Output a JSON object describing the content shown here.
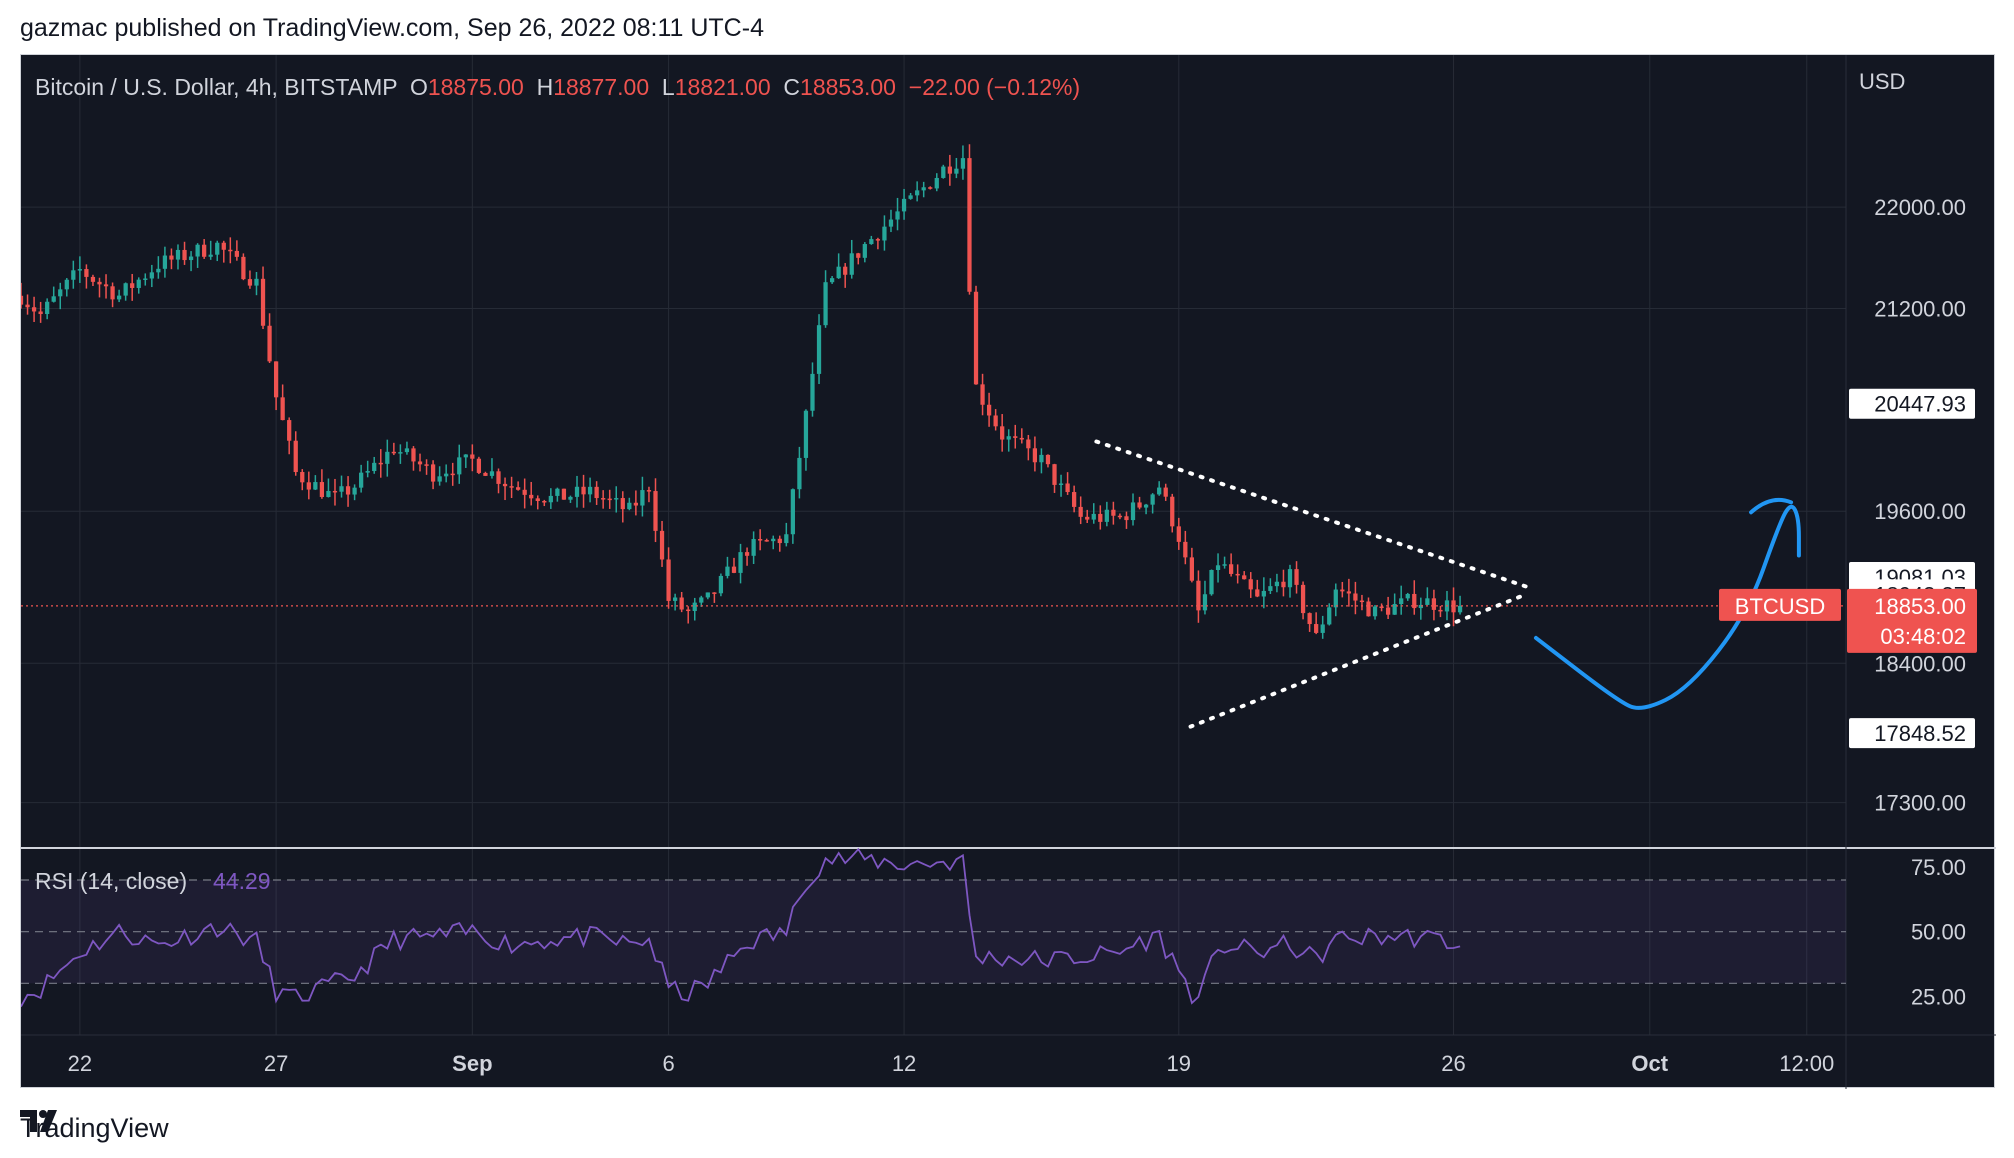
{
  "header": {
    "publisher": "gazmac published on TradingView.com, Sep 26, 2022 08:11 UTC-4"
  },
  "footer": {
    "brand": "TradingView"
  },
  "colors": {
    "bg": "#131722",
    "up": "#26a69a",
    "down": "#ef5350",
    "rsi": "#7e57c2",
    "drawing": "#2196f3",
    "grid": "#262b36",
    "axis_text": "#d1d4dc"
  },
  "chart_data": [
    {
      "type": "candlestick",
      "symbol_label": "Bitcoin / U.S. Dollar, 4h, BITSTAMP",
      "ohlc_labels": {
        "open": "O18875.00",
        "high": "H18877.00",
        "low": "L18821.00",
        "close": "C18853.00",
        "change": "−22.00 (−0.12%)"
      },
      "currency": "USD",
      "y_ticks": [
        "22000.00",
        "21200.00",
        "19600.00",
        "18400.00",
        "17300.00"
      ],
      "y_tick_values": [
        22000,
        21200,
        19600,
        18400,
        17300
      ],
      "price_labels": [
        {
          "text": "20447.93",
          "value": 20447.93
        },
        {
          "text": "19081.03",
          "value": 19081.03
        },
        {
          "text": "18943.37",
          "value": 18943.37
        },
        {
          "text": "17848.52",
          "value": 17848.52
        }
      ],
      "last_price": {
        "symbol": "BTCUSD",
        "value_text": "18853.00",
        "value": 18853,
        "countdown": "03:48:02"
      },
      "ylim": [
        16950,
        23200
      ],
      "x_ticks": [
        "22",
        "27",
        "Sep",
        "6",
        "12",
        "19",
        "26",
        "Oct",
        "12:00"
      ],
      "x_tick_days": [
        22,
        27,
        32,
        37,
        43,
        50,
        57,
        62,
        66
      ],
      "x_range_days": [
        20.5,
        67
      ],
      "anchors": [
        [
          20.5,
          21300
        ],
        [
          21,
          21150
        ],
        [
          22,
          21500
        ],
        [
          23,
          21300
        ],
        [
          24,
          21550
        ],
        [
          25.5,
          21700
        ],
        [
          26.5,
          21400
        ],
        [
          27,
          20500
        ],
        [
          27.5,
          19900
        ],
        [
          28.5,
          19700
        ],
        [
          29,
          19800
        ],
        [
          30,
          20100
        ],
        [
          31,
          19900
        ],
        [
          32,
          20000
        ],
        [
          33,
          19800
        ],
        [
          34,
          19700
        ],
        [
          35,
          19750
        ],
        [
          36,
          19600
        ],
        [
          36.5,
          19800
        ],
        [
          37,
          18900
        ],
        [
          37.5,
          18800
        ],
        [
          38,
          18900
        ],
        [
          39,
          19300
        ],
        [
          40,
          19400
        ],
        [
          40.5,
          20350
        ],
        [
          41,
          21350
        ],
        [
          42,
          21700
        ],
        [
          43,
          22000
        ],
        [
          44,
          22300
        ],
        [
          44.5,
          22400
        ],
        [
          44.8,
          20600
        ],
        [
          45.5,
          20200
        ],
        [
          46.5,
          20000
        ],
        [
          47.5,
          19550
        ],
        [
          48.5,
          19550
        ],
        [
          49,
          19650
        ],
        [
          49.5,
          19800
        ],
        [
          50,
          19400
        ],
        [
          50.5,
          18800
        ],
        [
          51,
          19200
        ],
        [
          52,
          18900
        ],
        [
          52.8,
          19100
        ],
        [
          53.5,
          18600
        ],
        [
          54,
          19000
        ],
        [
          55,
          18800
        ],
        [
          56,
          18900
        ],
        [
          57,
          18850
        ],
        [
          57.3,
          18853
        ]
      ],
      "triangle_upper": [
        [
          47.9,
          20150
        ],
        [
          58.9,
          19000
        ]
      ],
      "triangle_lower": [
        [
          50.3,
          17900
        ],
        [
          58.9,
          18950
        ]
      ],
      "drawing_path_points": [
        [
          59.1,
          18600
        ],
        [
          61.2,
          18100
        ],
        [
          61.8,
          18020
        ],
        [
          63,
          18200
        ],
        [
          64.5,
          18800
        ],
        [
          65.3,
          19500
        ],
        [
          65.6,
          19670
        ],
        [
          65.8,
          19550
        ],
        [
          65.8,
          19250
        ]
      ]
    },
    {
      "type": "line",
      "name": "RSI",
      "label": "RSI (14, close)",
      "value_text": "44.29",
      "y_ticks": [
        "75.00",
        "50.00",
        "25.00"
      ],
      "y_tick_values": [
        75,
        50,
        25
      ],
      "bands": [
        70,
        50,
        30
      ],
      "ylim": [
        10,
        82
      ],
      "anchors": [
        [
          20.5,
          25
        ],
        [
          21,
          28
        ],
        [
          22,
          42
        ],
        [
          23,
          50
        ],
        [
          24,
          45
        ],
        [
          25.5,
          52
        ],
        [
          26.5,
          46
        ],
        [
          27,
          27
        ],
        [
          27.5,
          24
        ],
        [
          28.5,
          30
        ],
        [
          29,
          33
        ],
        [
          30,
          47
        ],
        [
          31,
          48
        ],
        [
          32,
          50
        ],
        [
          33,
          45
        ],
        [
          34,
          47
        ],
        [
          35,
          48
        ],
        [
          36,
          45
        ],
        [
          36.5,
          47
        ],
        [
          37,
          28
        ],
        [
          37.5,
          26
        ],
        [
          38,
          30
        ],
        [
          39,
          46
        ],
        [
          40,
          50
        ],
        [
          40.5,
          70
        ],
        [
          41,
          78
        ],
        [
          42,
          78
        ],
        [
          43,
          76
        ],
        [
          44,
          77
        ],
        [
          44.5,
          77
        ],
        [
          44.8,
          40
        ],
        [
          45.5,
          40
        ],
        [
          46.5,
          39
        ],
        [
          47.5,
          40
        ],
        [
          48.5,
          42
        ],
        [
          49,
          46
        ],
        [
          49.5,
          48
        ],
        [
          50,
          35
        ],
        [
          50.5,
          22
        ],
        [
          51,
          45
        ],
        [
          52,
          42
        ],
        [
          52.8,
          45
        ],
        [
          53.5,
          39
        ],
        [
          54,
          47
        ],
        [
          55,
          48
        ],
        [
          56,
          48
        ],
        [
          57,
          46
        ],
        [
          57.3,
          44.29
        ]
      ]
    }
  ]
}
